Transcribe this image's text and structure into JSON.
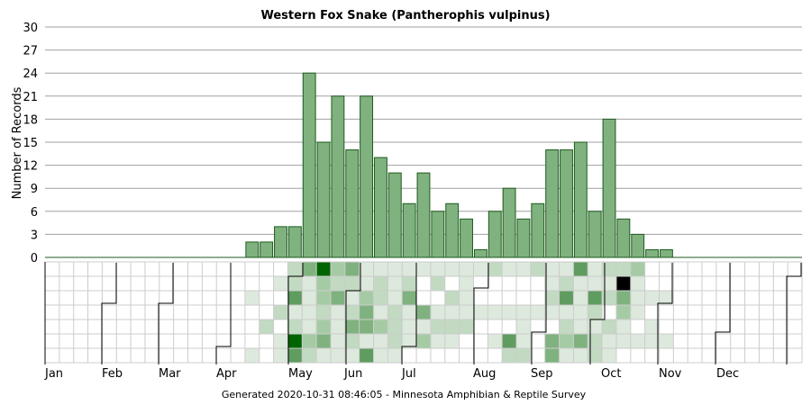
{
  "chart_data": {
    "type": "bar",
    "title": "Western Fox Snake (Pantherophis vulpinus)",
    "ylabel": "Number of Records",
    "xlabel": "",
    "ylim": [
      0,
      30
    ],
    "yticks": [
      0,
      3,
      6,
      9,
      12,
      15,
      18,
      21,
      24,
      27,
      30
    ],
    "grid": true,
    "months": [
      "Jan",
      "Feb",
      "Mar",
      "Apr",
      "May",
      "Jun",
      "Jul",
      "Aug",
      "Sep",
      "Oct",
      "Nov",
      "Dec"
    ],
    "values": [
      0,
      0,
      0,
      0,
      0,
      0,
      0,
      0,
      0,
      0,
      0,
      0,
      0,
      0,
      2,
      2,
      4,
      4,
      24,
      15,
      21,
      14,
      21,
      13,
      11,
      7,
      11,
      6,
      7,
      5,
      1,
      6,
      9,
      5,
      7,
      14,
      14,
      15,
      6,
      18,
      5,
      3,
      1,
      1,
      0,
      0,
      0,
      0,
      0,
      0,
      0,
      0,
      0
    ],
    "bar_color": "#7fb27f",
    "bar_edge_color": "#1e5a1e",
    "heatmap_colors": [
      "#dde9dd",
      "#c1dac1",
      "#a5cba5",
      "#7fb27f",
      "#5f9c5f",
      "#006400"
    ],
    "heatmap": {
      "rows": 7,
      "cells": [
        [
          17,
          0,
          1
        ],
        [
          18,
          0,
          3
        ],
        [
          19,
          0,
          5
        ],
        [
          20,
          0,
          2
        ],
        [
          21,
          0,
          3
        ],
        [
          22,
          0,
          0
        ],
        [
          23,
          0,
          0
        ],
        [
          24,
          0,
          0
        ],
        [
          25,
          0,
          0
        ],
        [
          26,
          0,
          0
        ],
        [
          27,
          0,
          0
        ],
        [
          28,
          0,
          0
        ],
        [
          29,
          0,
          0
        ],
        [
          30,
          0,
          0
        ],
        [
          31,
          0,
          1
        ],
        [
          32,
          0,
          0
        ],
        [
          33,
          0,
          0
        ],
        [
          34,
          0,
          1
        ],
        [
          35,
          0,
          0
        ],
        [
          36,
          0,
          0
        ],
        [
          37,
          0,
          4
        ],
        [
          38,
          0,
          0
        ],
        [
          39,
          0,
          1
        ],
        [
          40,
          0,
          1
        ],
        [
          41,
          0,
          2
        ],
        [
          16,
          1,
          0
        ],
        [
          17,
          1,
          1
        ],
        [
          18,
          1,
          0
        ],
        [
          19,
          1,
          2
        ],
        [
          20,
          1,
          1
        ],
        [
          21,
          1,
          1
        ],
        [
          22,
          1,
          0
        ],
        [
          23,
          1,
          1
        ],
        [
          24,
          1,
          0
        ],
        [
          25,
          1,
          1
        ],
        [
          27,
          1,
          1
        ],
        [
          29,
          1,
          0
        ],
        [
          35,
          1,
          0
        ],
        [
          36,
          1,
          1
        ],
        [
          37,
          1,
          0
        ],
        [
          38,
          1,
          0
        ],
        [
          39,
          1,
          0
        ],
        [
          40,
          1,
          6
        ],
        [
          41,
          1,
          0
        ],
        [
          14,
          2,
          0
        ],
        [
          17,
          2,
          4
        ],
        [
          18,
          2,
          0
        ],
        [
          19,
          2,
          2
        ],
        [
          20,
          2,
          3
        ],
        [
          21,
          2,
          0
        ],
        [
          22,
          2,
          2
        ],
        [
          23,
          2,
          1
        ],
        [
          24,
          2,
          0
        ],
        [
          25,
          2,
          3
        ],
        [
          28,
          2,
          1
        ],
        [
          29,
          2,
          0
        ],
        [
          35,
          2,
          1
        ],
        [
          36,
          2,
          4
        ],
        [
          37,
          2,
          0
        ],
        [
          38,
          2,
          4
        ],
        [
          39,
          2,
          1
        ],
        [
          40,
          2,
          3
        ],
        [
          41,
          2,
          0
        ],
        [
          42,
          2,
          0
        ],
        [
          43,
          2,
          0
        ],
        [
          16,
          3,
          1
        ],
        [
          17,
          3,
          0
        ],
        [
          18,
          3,
          0
        ],
        [
          19,
          3,
          1
        ],
        [
          20,
          3,
          0
        ],
        [
          21,
          3,
          1
        ],
        [
          22,
          3,
          3
        ],
        [
          23,
          3,
          0
        ],
        [
          24,
          3,
          1
        ],
        [
          25,
          3,
          0
        ],
        [
          26,
          3,
          3
        ],
        [
          27,
          3,
          0
        ],
        [
          28,
          3,
          0
        ],
        [
          29,
          3,
          0
        ],
        [
          30,
          3,
          0
        ],
        [
          31,
          3,
          0
        ],
        [
          32,
          3,
          0
        ],
        [
          33,
          3,
          0
        ],
        [
          34,
          3,
          0
        ],
        [
          35,
          3,
          0
        ],
        [
          36,
          3,
          0
        ],
        [
          37,
          3,
          0
        ],
        [
          38,
          3,
          1
        ],
        [
          40,
          3,
          2
        ],
        [
          41,
          3,
          0
        ],
        [
          15,
          4,
          1
        ],
        [
          17,
          4,
          1
        ],
        [
          18,
          4,
          0
        ],
        [
          19,
          4,
          2
        ],
        [
          20,
          4,
          0
        ],
        [
          21,
          4,
          3
        ],
        [
          22,
          4,
          3
        ],
        [
          23,
          4,
          2
        ],
        [
          24,
          4,
          1
        ],
        [
          25,
          4,
          0
        ],
        [
          26,
          4,
          0
        ],
        [
          27,
          4,
          1
        ],
        [
          28,
          4,
          1
        ],
        [
          29,
          4,
          1
        ],
        [
          33,
          4,
          0
        ],
        [
          36,
          4,
          1
        ],
        [
          37,
          4,
          0
        ],
        [
          38,
          4,
          0
        ],
        [
          39,
          4,
          1
        ],
        [
          40,
          4,
          0
        ],
        [
          42,
          4,
          0
        ],
        [
          16,
          5,
          0
        ],
        [
          17,
          5,
          5
        ],
        [
          18,
          5,
          2
        ],
        [
          19,
          5,
          3
        ],
        [
          20,
          5,
          0
        ],
        [
          21,
          5,
          1
        ],
        [
          22,
          5,
          0
        ],
        [
          23,
          5,
          0
        ],
        [
          24,
          5,
          1
        ],
        [
          25,
          5,
          0
        ],
        [
          26,
          5,
          2
        ],
        [
          27,
          5,
          0
        ],
        [
          28,
          5,
          0
        ],
        [
          31,
          5,
          0
        ],
        [
          32,
          5,
          4
        ],
        [
          33,
          5,
          0
        ],
        [
          35,
          5,
          3
        ],
        [
          36,
          5,
          2
        ],
        [
          37,
          5,
          3
        ],
        [
          38,
          5,
          1
        ],
        [
          39,
          5,
          0
        ],
        [
          40,
          5,
          0
        ],
        [
          41,
          5,
          0
        ],
        [
          42,
          5,
          0
        ],
        [
          43,
          5,
          0
        ],
        [
          14,
          6,
          0
        ],
        [
          16,
          6,
          0
        ],
        [
          17,
          6,
          4
        ],
        [
          18,
          6,
          1
        ],
        [
          19,
          6,
          0
        ],
        [
          20,
          6,
          0
        ],
        [
          21,
          6,
          0
        ],
        [
          22,
          6,
          4
        ],
        [
          23,
          6,
          0
        ],
        [
          24,
          6,
          0
        ],
        [
          32,
          6,
          1
        ],
        [
          33,
          6,
          1
        ],
        [
          35,
          6,
          3
        ],
        [
          36,
          6,
          0
        ],
        [
          37,
          6,
          0
        ],
        [
          38,
          6,
          1
        ],
        [
          39,
          6,
          0
        ]
      ]
    },
    "footer": "Generated 2020-10-31 08:46:05 - Minnesota Amphibian & Reptile Survey"
  }
}
